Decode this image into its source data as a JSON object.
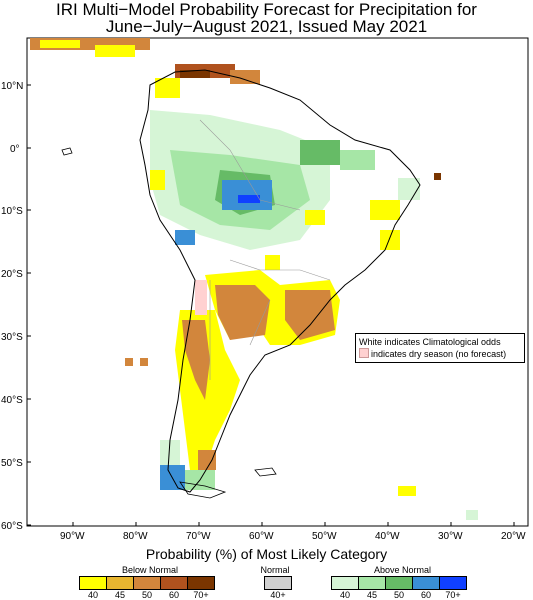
{
  "title": {
    "line1": "IRI Multi−Model Probability Forecast for Precipitation for",
    "line2": "June−July−August 2021, Issued May 2021"
  },
  "axes": {
    "y_labels": [
      "10°N",
      "0°",
      "10°S",
      "20°S",
      "30°S",
      "40°S",
      "50°S",
      "60°S"
    ],
    "x_labels": [
      "90°W",
      "80°W",
      "70°W",
      "60°W",
      "50°W",
      "40°W",
      "30°W",
      "20°W"
    ]
  },
  "note": {
    "line1": "White indicates Climatological odds",
    "line2": "indicates dry season (no forecast)"
  },
  "legend": {
    "heading": "Probability (%) of Most Likely Category",
    "below_normal": {
      "label": "Below Normal",
      "ticks": [
        "40",
        "45",
        "50",
        "60",
        "70+"
      ],
      "colors": [
        "#ffff00",
        "#e8b630",
        "#d2863c",
        "#b0521e",
        "#7a3500"
      ]
    },
    "normal": {
      "label": "Normal",
      "ticks": [
        "40+"
      ],
      "colors": [
        "#d0d0d0"
      ]
    },
    "above_normal": {
      "label": "Above Normal",
      "ticks": [
        "40",
        "45",
        "50",
        "60",
        "70+"
      ],
      "colors": [
        "#d6f5d6",
        "#a6e6a6",
        "#66bb66",
        "#3a8fd6",
        "#1040ff"
      ]
    }
  },
  "colors": {
    "dry_season": "#ffd1d1",
    "ocean": "#ffffff",
    "land_outline": "#000000"
  }
}
